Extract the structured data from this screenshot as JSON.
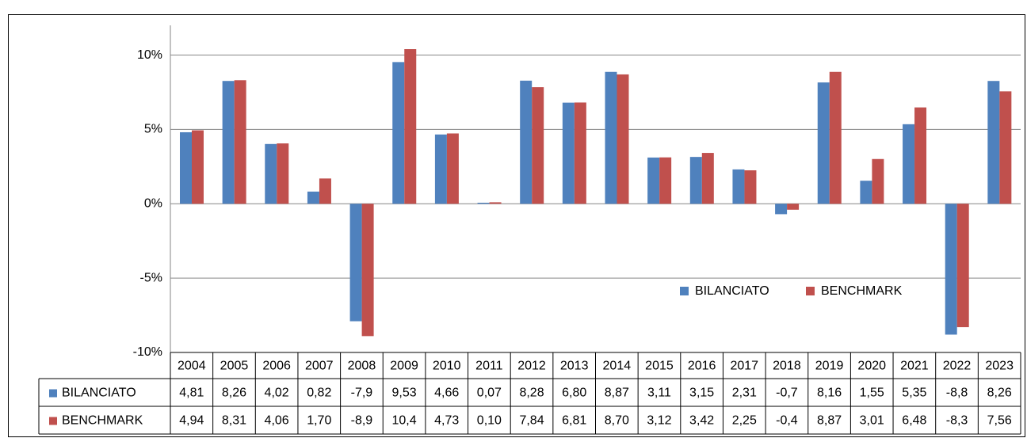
{
  "chart_data": {
    "type": "bar",
    "categories": [
      "2004",
      "2005",
      "2006",
      "2007",
      "2008",
      "2009",
      "2010",
      "2011",
      "2012",
      "2013",
      "2014",
      "2015",
      "2016",
      "2017",
      "2018",
      "2019",
      "2020",
      "2021",
      "2022",
      "2023"
    ],
    "series": [
      {
        "name": "BILANCIATO",
        "color": "#4f81bd",
        "values": [
          4.81,
          8.26,
          4.02,
          0.82,
          -7.9,
          9.53,
          4.66,
          0.07,
          8.28,
          6.8,
          8.87,
          3.11,
          3.15,
          2.31,
          -0.7,
          8.16,
          1.55,
          5.35,
          -8.8,
          8.26
        ],
        "value_labels": [
          "4,81",
          "8,26",
          "4,02",
          "0,82",
          "-7,9",
          "9,53",
          "4,66",
          "0,07",
          "8,28",
          "6,80",
          "8,87",
          "3,11",
          "3,15",
          "2,31",
          "-0,7",
          "8,16",
          "1,55",
          "5,35",
          "-8,8",
          "8,26"
        ]
      },
      {
        "name": "BENCHMARK",
        "color": "#c0504d",
        "values": [
          4.94,
          8.31,
          4.06,
          1.7,
          -8.9,
          10.4,
          4.73,
          0.1,
          7.84,
          6.81,
          8.7,
          3.12,
          3.42,
          2.25,
          -0.4,
          8.87,
          3.01,
          6.48,
          -8.3,
          7.56
        ],
        "value_labels": [
          "4,94",
          "8,31",
          "4,06",
          "1,70",
          "-8,9",
          "10,4",
          "4,73",
          "0,10",
          "7,84",
          "6,81",
          "8,70",
          "3,12",
          "3,42",
          "2,25",
          "-0,4",
          "8,87",
          "3,01",
          "6,48",
          "-8,3",
          "7,56"
        ]
      }
    ],
    "ylim": [
      -10,
      12
    ],
    "yticks": [
      {
        "value": -10,
        "label": "-10%"
      },
      {
        "value": -5,
        "label": "-5%"
      },
      {
        "value": 0,
        "label": "0%"
      },
      {
        "value": 5,
        "label": "5%"
      },
      {
        "value": 10,
        "label": "10%"
      }
    ],
    "grid": true,
    "legend": "right"
  }
}
